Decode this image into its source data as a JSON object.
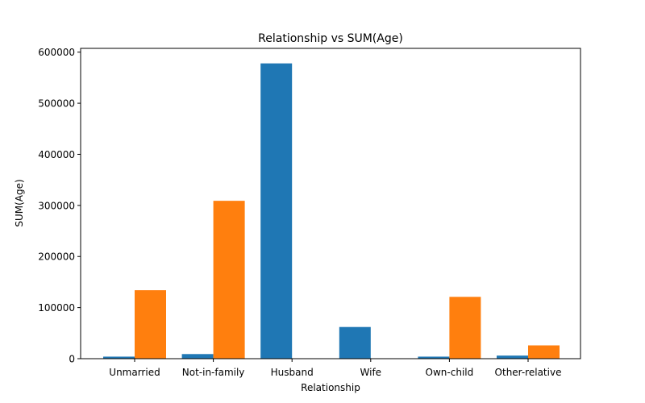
{
  "chart_data": {
    "type": "bar",
    "title": "Relationship vs SUM(Age)",
    "xlabel": "Relationship",
    "ylabel": "SUM(Age)",
    "categories": [
      "Unmarried",
      "Not-in-family",
      "Husband",
      "Wife",
      "Own-child",
      "Other-relative"
    ],
    "series": [
      {
        "values": [
          4000,
          9000,
          578000,
          62000,
          4000,
          6000
        ],
        "color": "#1f77b4"
      },
      {
        "values": [
          134000,
          309000,
          0,
          0,
          121000,
          26000
        ],
        "color": "#ff7f0e"
      }
    ],
    "ylim": [
      0,
      600000
    ],
    "yticks": [
      0,
      100000,
      200000,
      300000,
      400000,
      500000,
      600000
    ],
    "grid": false,
    "legend": "none"
  }
}
